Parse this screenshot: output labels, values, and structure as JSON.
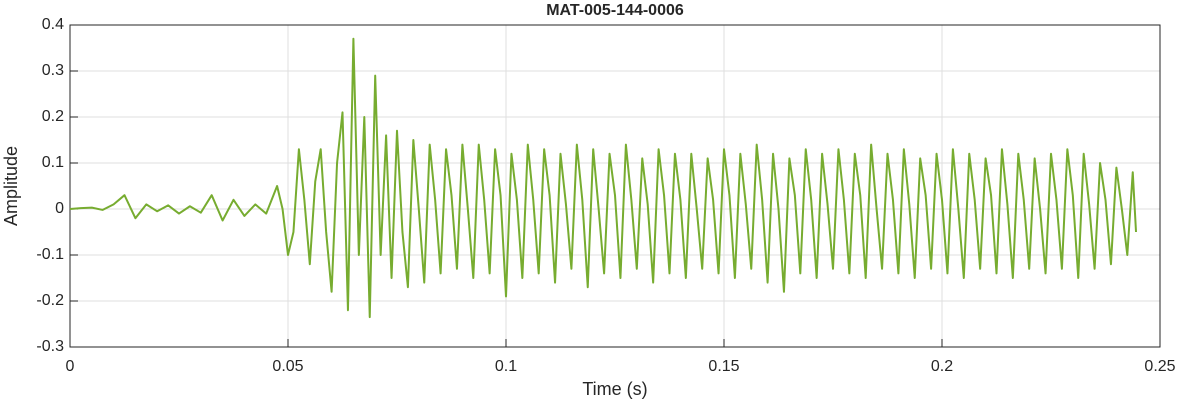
{
  "chart_data": {
    "type": "line",
    "title": "MAT-005-144-0006",
    "x_label": "Time (s)",
    "y_label": "Amplitude",
    "color": "#77ac30",
    "grid": true,
    "xlim": [
      0,
      0.25
    ],
    "ylim": [
      -0.3,
      0.4
    ],
    "xticks": [
      0,
      0.05,
      0.1,
      0.15,
      0.2,
      0.25
    ],
    "yticks": [
      -0.3,
      -0.2,
      -0.1,
      0,
      0.1,
      0.2,
      0.3,
      0.4
    ],
    "x": [
      0,
      0.0025,
      0.005,
      0.0075,
      0.01,
      0.0125,
      0.015,
      0.0175,
      0.02,
      0.0225,
      0.025,
      0.0275,
      0.03,
      0.0325,
      0.035,
      0.0375,
      0.04,
      0.0425,
      0.045,
      0.0475,
      0.04875,
      0.05,
      0.05125,
      0.0525,
      0.05375,
      0.055,
      0.05625,
      0.0575,
      0.05875,
      0.06,
      0.06125,
      0.0625,
      0.06375,
      0.065,
      0.06625,
      0.0675,
      0.06875,
      0.07,
      0.07125,
      0.0725,
      0.07375,
      0.075,
      0.07625,
      0.0775,
      0.07875,
      0.08,
      0.08125,
      0.0825,
      0.08375,
      0.085,
      0.08625,
      0.0875,
      0.08875,
      0.09,
      0.09125,
      0.0925,
      0.09375,
      0.095,
      0.09625,
      0.0975,
      0.09875,
      0.1,
      0.10125,
      0.1025,
      0.10375,
      0.105,
      0.10625,
      0.1075,
      0.10875,
      0.11,
      0.11125,
      0.1125,
      0.11375,
      0.115,
      0.11625,
      0.1175,
      0.11875,
      0.12,
      0.12125,
      0.1225,
      0.12375,
      0.125,
      0.12625,
      0.1275,
      0.12875,
      0.13,
      0.13125,
      0.1325,
      0.13375,
      0.135,
      0.13625,
      0.1375,
      0.13875,
      0.14,
      0.14125,
      0.1425,
      0.14375,
      0.145,
      0.14625,
      0.1475,
      0.14875,
      0.15,
      0.15125,
      0.1525,
      0.15375,
      0.155,
      0.15625,
      0.1575,
      0.15875,
      0.16,
      0.16125,
      0.1625,
      0.16375,
      0.165,
      0.16625,
      0.1675,
      0.16875,
      0.17,
      0.17125,
      0.1725,
      0.17375,
      0.175,
      0.17625,
      0.1775,
      0.17875,
      0.18,
      0.18125,
      0.1825,
      0.18375,
      0.185,
      0.18625,
      0.1875,
      0.18875,
      0.19,
      0.19125,
      0.1925,
      0.19375,
      0.195,
      0.19625,
      0.1975,
      0.19875,
      0.2,
      0.20125,
      0.2025,
      0.20375,
      0.205,
      0.20625,
      0.2075,
      0.20875,
      0.21,
      0.21125,
      0.2125,
      0.21375,
      0.215,
      0.21625,
      0.2175,
      0.21875,
      0.22,
      0.22125,
      0.2225,
      0.22375,
      0.225,
      0.22625,
      0.2275,
      0.22875,
      0.23,
      0.23125,
      0.2325,
      0.23375,
      0.235,
      0.23625,
      0.2375,
      0.23875,
      0.24,
      0.24125,
      0.2425,
      0.24375,
      0.2445
    ],
    "values": [
      0,
      0.002,
      0.003,
      -0.002,
      0.01,
      0.03,
      -0.02,
      0.01,
      -0.005,
      0.008,
      -0.01,
      0.006,
      -0.008,
      0.03,
      -0.025,
      0.02,
      -0.015,
      0.01,
      -0.01,
      0.05,
      0,
      -0.1,
      -0.05,
      0.13,
      0.02,
      -0.12,
      0.06,
      0.13,
      -0.05,
      -0.18,
      0.1,
      0.21,
      -0.22,
      0.37,
      -0.1,
      0.2,
      -0.235,
      0.29,
      -0.1,
      0.16,
      -0.15,
      0.17,
      -0.05,
      -0.17,
      0.15,
      0,
      -0.16,
      0.14,
      0.02,
      -0.14,
      0.13,
      0.03,
      -0.13,
      0.14,
      0,
      -0.15,
      0.14,
      0.02,
      -0.14,
      0.13,
      0.03,
      -0.19,
      0.12,
      0.02,
      -0.15,
      0.14,
      0.02,
      -0.14,
      0.13,
      0.03,
      -0.16,
      0.12,
      0.01,
      -0.13,
      0.14,
      0.02,
      -0.17,
      0.13,
      0,
      -0.14,
      0.12,
      0.03,
      -0.15,
      0.14,
      0.02,
      -0.13,
      0.11,
      0.01,
      -0.16,
      0.13,
      0.03,
      -0.14,
      0.12,
      0.02,
      -0.15,
      0.12,
      0,
      -0.13,
      0.11,
      0.02,
      -0.14,
      0.13,
      0.03,
      -0.15,
      0.12,
      0.01,
      -0.13,
      0.14,
      0.02,
      -0.16,
      0.12,
      0,
      -0.18,
      0.11,
      0.03,
      -0.14,
      0.13,
      0.02,
      -0.15,
      0.12,
      0.01,
      -0.13,
      0.13,
      0.02,
      -0.14,
      0.12,
      0.03,
      -0.15,
      0.14,
      0,
      -0.13,
      0.12,
      0.02,
      -0.14,
      0.13,
      0.01,
      -0.15,
      0.11,
      0.03,
      -0.13,
      0.12,
      0.02,
      -0.14,
      0.13,
      0,
      -0.15,
      0.12,
      0.02,
      -0.13,
      0.11,
      0.03,
      -0.14,
      0.13,
      0.01,
      -0.15,
      0.12,
      0.02,
      -0.13,
      0.11,
      0,
      -0.14,
      0.12,
      0.02,
      -0.13,
      0.13,
      0.03,
      -0.15,
      0.12,
      0.01,
      -0.13,
      0.1,
      0.02,
      -0.12,
      0.09,
      0,
      -0.1,
      0.08,
      -0.05
    ]
  }
}
